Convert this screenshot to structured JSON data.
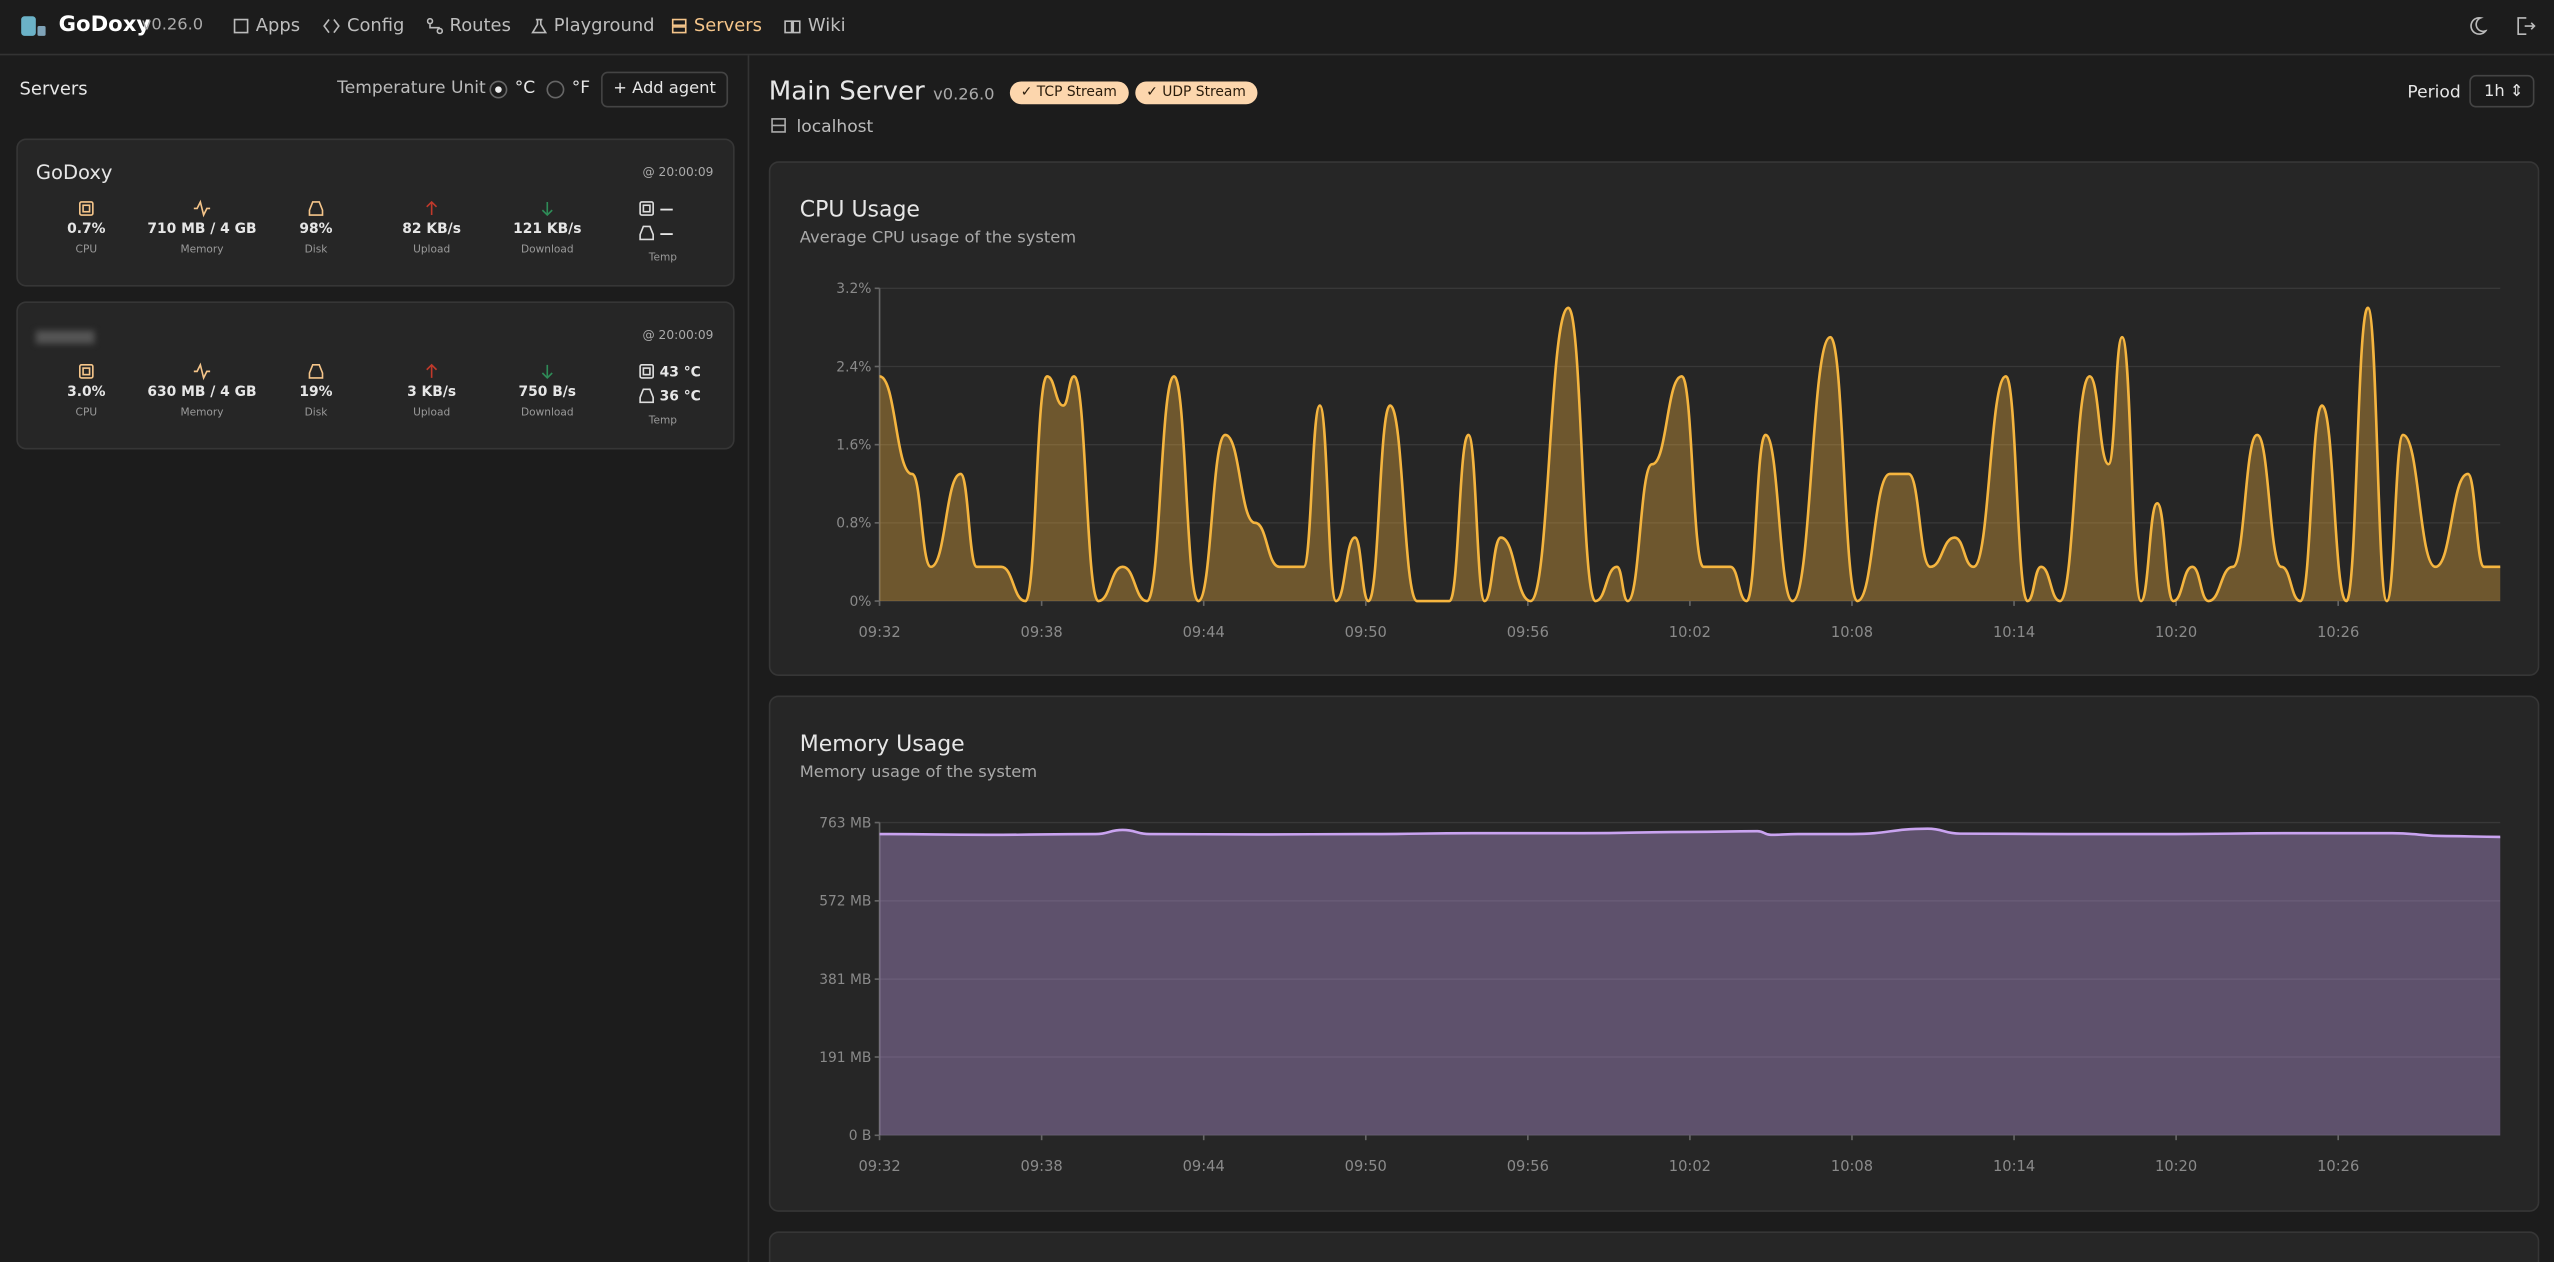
{
  "header": {
    "brand": "GoDoxy",
    "version": "v0.26.0",
    "nav": [
      "Apps",
      "Config",
      "Routes",
      "Playground",
      "Servers",
      "Wiki"
    ]
  },
  "sidebar": {
    "title": "Servers",
    "temperature_label": "Temperature Unit",
    "units": [
      "°C",
      "°F"
    ],
    "add_button": "Add agent",
    "servers": [
      {
        "name": "GoDoxy",
        "time": "@ 20:00:09",
        "stats": [
          {
            "value": "0.7%",
            "label": "CPU"
          },
          {
            "value": "710 MB / 4 GB",
            "label": "Memory"
          },
          {
            "value": "98%",
            "label": "Disk"
          },
          {
            "value": "82 KB/s",
            "label": "Upload"
          },
          {
            "value": "121 KB/s",
            "label": "Download"
          }
        ],
        "temps": [
          "—",
          "—"
        ],
        "temp_label": "Temp"
      },
      {
        "time": "@ 20:00:09",
        "stats": [
          {
            "value": "3.0%",
            "label": "CPU"
          },
          {
            "value": "630 MB / 4 GB",
            "label": "Memory"
          },
          {
            "value": "19%",
            "label": "Disk"
          },
          {
            "value": "3 KB/s",
            "label": "Upload"
          },
          {
            "value": "750 B/s",
            "label": "Download"
          }
        ],
        "temps": [
          "43 °C",
          "36 °C"
        ],
        "temp_label": "Temp"
      }
    ]
  },
  "main": {
    "title": "Main Server",
    "version": "v0.26.0",
    "badges": [
      "TCP Stream",
      "UDP Stream"
    ],
    "host": "localhost",
    "period_label": "Period",
    "period": "1h"
  },
  "chart_data": [
    {
      "type": "area",
      "title": "CPU Usage",
      "subtitle": "Average CPU usage of the system",
      "color": "#f5b53f",
      "x": [
        0,
        1.2,
        1.9,
        3.0,
        3.6,
        4.5,
        5.4,
        6.2,
        6.8,
        7.2,
        8.1,
        9.0,
        9.9,
        10.9,
        11.8,
        12.8,
        13.9,
        14.8,
        15.7,
        16.3,
        16.9,
        17.6,
        18.1,
        18.9,
        19.9,
        21.1,
        21.8,
        22.4,
        23.0,
        24.1,
        25.5,
        26.5,
        27.3,
        27.7,
        28.6,
        29.7,
        30.5,
        31.5,
        32.1,
        32.8,
        33.8,
        35.2,
        36.2,
        37.4,
        38.1,
        38.9,
        39.8,
        40.5,
        41.7,
        42.5,
        43.0,
        43.7,
        44.8,
        45.5,
        46.0,
        46.7,
        47.3,
        47.9,
        48.6,
        49.2,
        50.1,
        51.0,
        51.9,
        52.6,
        53.4,
        54.3,
        55.1,
        55.8,
        56.4,
        57.6,
        58.8,
        59.4,
        60
      ],
      "values": [
        2.3,
        1.3,
        0.35,
        1.3,
        0.35,
        0.35,
        0,
        2.3,
        2.0,
        2.3,
        0,
        0.35,
        0,
        2.3,
        0,
        1.7,
        0.8,
        0.35,
        0.35,
        2.0,
        0,
        0.65,
        0,
        2.0,
        0,
        0,
        1.7,
        0,
        0.65,
        0,
        3.0,
        0,
        0.35,
        0,
        1.4,
        2.3,
        0.35,
        0.35,
        0,
        1.7,
        0,
        2.7,
        0,
        1.3,
        1.3,
        0.35,
        0.65,
        0.35,
        2.3,
        0,
        0.35,
        0,
        2.3,
        1.4,
        2.7,
        0,
        1.0,
        0,
        0.35,
        0,
        0.35,
        1.7,
        0.35,
        0,
        2.0,
        0,
        3.0,
        0,
        1.7,
        0.35,
        1.3,
        0.35,
        0.35
      ],
      "xlim": [
        0,
        60
      ],
      "xticks": [
        {
          "value": 0,
          "label": "09:32"
        },
        {
          "value": 6,
          "label": "09:38"
        },
        {
          "value": 12,
          "label": "09:44"
        },
        {
          "value": 18,
          "label": "09:50"
        },
        {
          "value": 24,
          "label": "09:56"
        },
        {
          "value": 30,
          "label": "10:02"
        },
        {
          "value": 36,
          "label": "10:08"
        },
        {
          "value": 42,
          "label": "10:14"
        },
        {
          "value": 48,
          "label": "10:20"
        },
        {
          "value": 54,
          "label": "10:26"
        }
      ],
      "ylim": [
        0,
        3.2
      ],
      "yticks": [
        {
          "value": 0,
          "label": "0%"
        },
        {
          "value": 0.8,
          "label": "0.8%"
        },
        {
          "value": 1.6,
          "label": "1.6%"
        },
        {
          "value": 2.4,
          "label": "2.4%"
        },
        {
          "value": 3.2,
          "label": "3.2%"
        }
      ],
      "grid": true
    },
    {
      "type": "area",
      "title": "Memory Usage",
      "subtitle": "Memory usage of the system",
      "color": "#c9a3f0",
      "x": [
        0,
        4,
        8,
        9,
        10,
        14,
        18,
        22,
        26,
        30,
        32.5,
        33,
        34,
        36,
        38.8,
        40,
        44,
        48,
        52,
        56,
        58,
        60
      ],
      "values": [
        735,
        733,
        735,
        745,
        735,
        734,
        735,
        737,
        737,
        740,
        742,
        733,
        735,
        735,
        748,
        736,
        735,
        735,
        737,
        737,
        730,
        728
      ],
      "xlim": [
        0,
        60
      ],
      "xticks": [
        {
          "value": 0,
          "label": "09:32"
        },
        {
          "value": 6,
          "label": "09:38"
        },
        {
          "value": 12,
          "label": "09:44"
        },
        {
          "value": 18,
          "label": "09:50"
        },
        {
          "value": 24,
          "label": "09:56"
        },
        {
          "value": 30,
          "label": "10:02"
        },
        {
          "value": 36,
          "label": "10:08"
        },
        {
          "value": 42,
          "label": "10:14"
        },
        {
          "value": 48,
          "label": "10:20"
        },
        {
          "value": 54,
          "label": "10:26"
        }
      ],
      "ylim": [
        0,
        763
      ],
      "yticks": [
        {
          "value": 0,
          "label": "0 B"
        },
        {
          "value": 191,
          "label": "191 MB"
        },
        {
          "value": 381,
          "label": "381 MB"
        },
        {
          "value": 572,
          "label": "572 MB"
        },
        {
          "value": 763,
          "label": "763 MB"
        }
      ],
      "grid": true
    }
  ]
}
